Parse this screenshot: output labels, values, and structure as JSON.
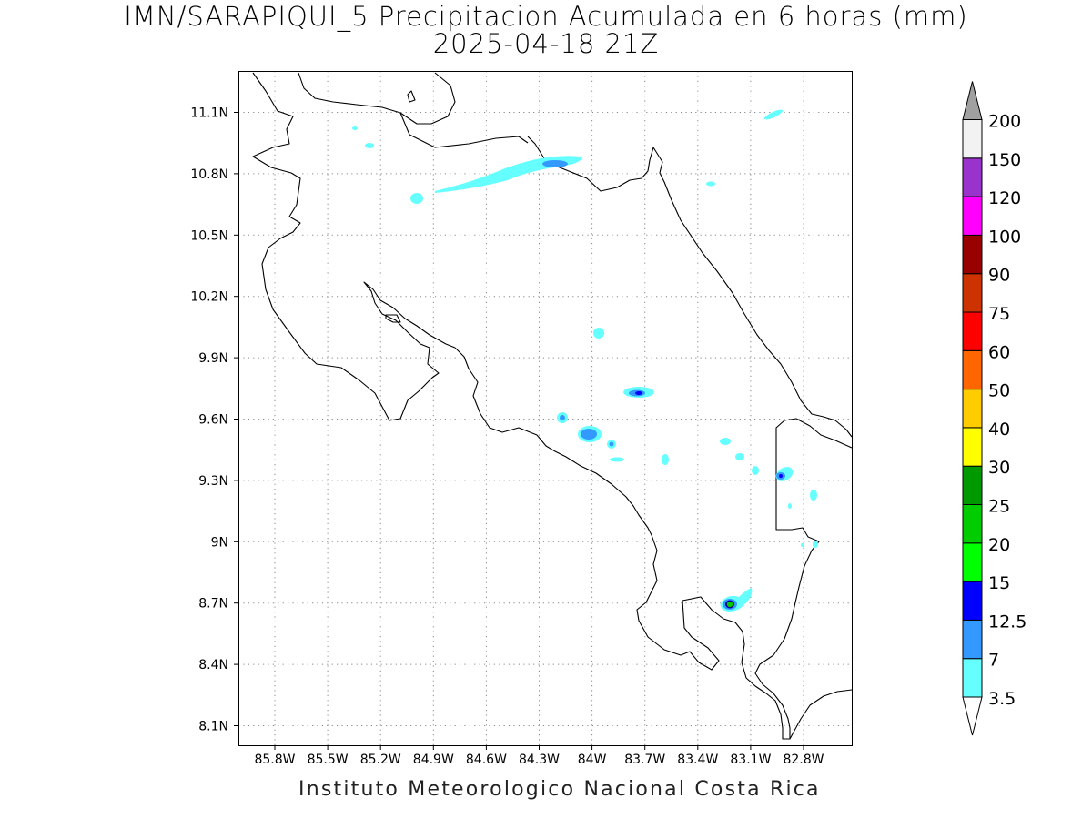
{
  "title": {
    "line1": "IMN/SARAPIQUI_5 Precipitacion Acumulada en 6 horas (mm)",
    "line2": "2025-04-18 21Z"
  },
  "footer": "Instituto Meteorologico Nacional Costa Rica",
  "map": {
    "lon_labels": [
      "85.8W",
      "85.5W",
      "85.2W",
      "84.9W",
      "84.6W",
      "84.3W",
      "84W",
      "83.7W",
      "83.4W",
      "83.1W",
      "82.8W"
    ],
    "lat_labels": [
      "11.1N",
      "10.8N",
      "10.5N",
      "10.2N",
      "9.9N",
      "9.6N",
      "9.3N",
      "9N",
      "8.7N",
      "8.4N",
      "8.1N"
    ],
    "grid": "dotted"
  },
  "colorbar": {
    "labels": [
      "3.5",
      "7",
      "12.5",
      "15",
      "20",
      "25",
      "30",
      "40",
      "50",
      "60",
      "75",
      "90",
      "100",
      "120",
      "150",
      "200"
    ],
    "colors": [
      "#66ffff",
      "#3399ff",
      "#0000ff",
      "#00ff00",
      "#00cc00",
      "#009900",
      "#ffff00",
      "#ffcc00",
      "#ff6600",
      "#ff0000",
      "#cc3300",
      "#990000",
      "#ff00ff",
      "#9933cc",
      "#f2f2f2",
      "#a0a0a0"
    ]
  }
}
